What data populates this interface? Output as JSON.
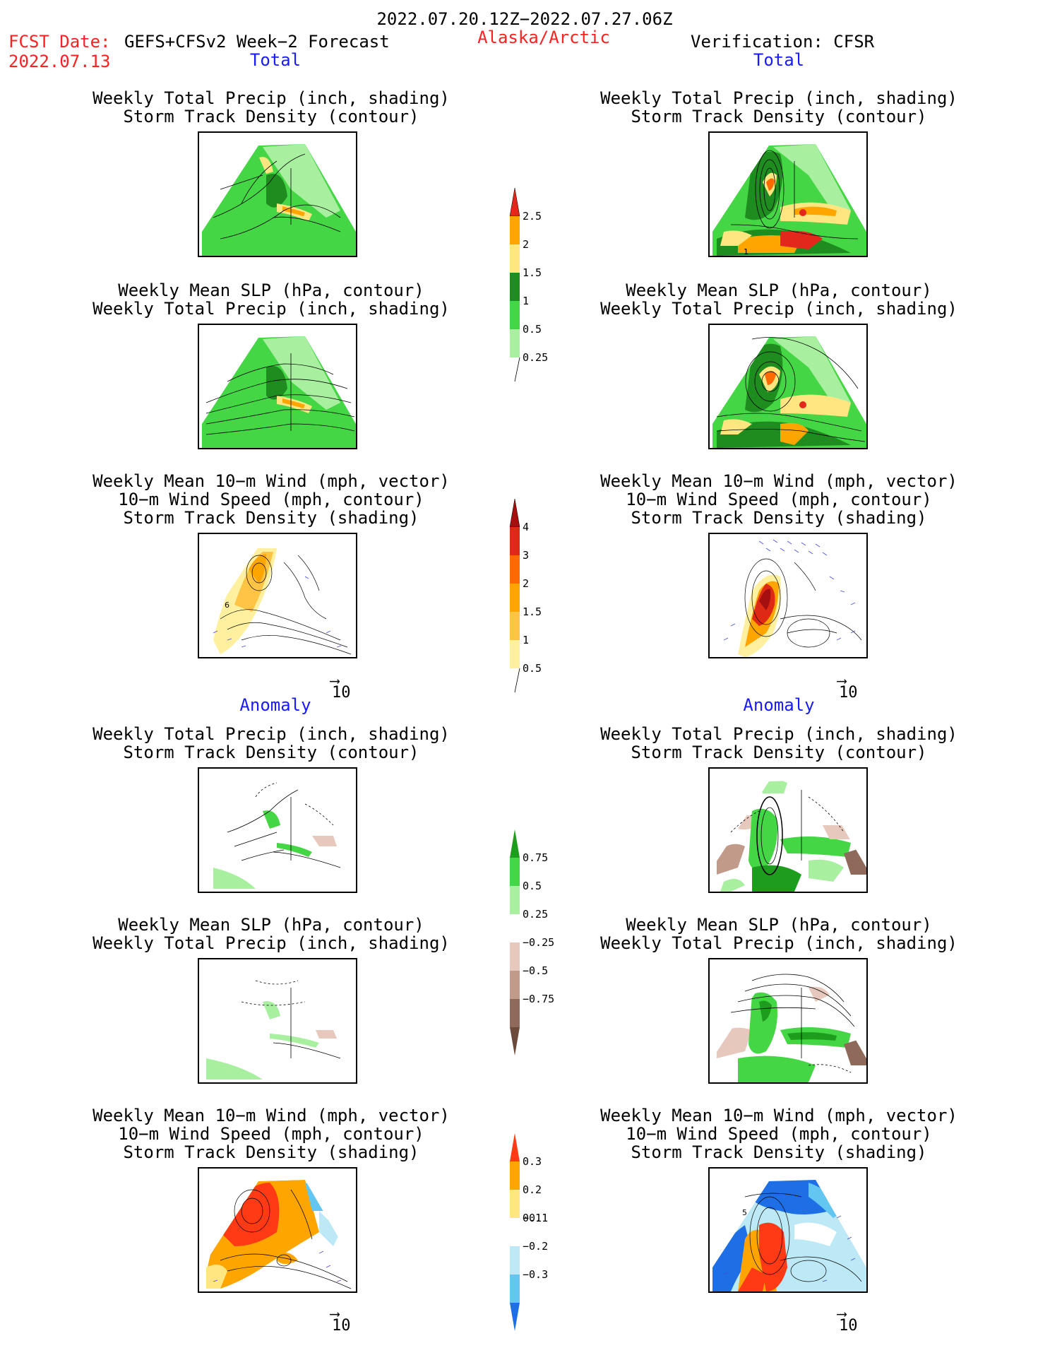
{
  "header": {
    "date_range": "2022.07.20.12Z−2022.07.27.06Z",
    "fcst_label": "FCST Date:",
    "fcst_model": "GEFS+CFSv2 Week−2 Forecast",
    "fcst_date": "2022.07.13",
    "region": "Alaska/Arctic",
    "verification": "Verification: CFSR"
  },
  "sections": {
    "total": "Total",
    "anomaly": "Anomaly"
  },
  "panel_titles": {
    "precip_storm": [
      "Weekly Total Precip (inch, shading)",
      "Storm Track Density (contour)"
    ],
    "slp_precip": [
      "Weekly Mean SLP (hPa, contour)",
      "Weekly Total Precip (inch, shading)"
    ],
    "wind_storm": [
      "Weekly Mean 10−m Wind (mph, vector)",
      "10−m Wind Speed (mph, contour)",
      "Storm Track Density (shading)"
    ]
  },
  "vector_reference": "10",
  "contour_labels": {
    "verif_total_precip": "1",
    "fcst_total_wind": "6",
    "verif_anom_wind": "5"
  },
  "colorbars": {
    "total_precip": {
      "labels": [
        "2.5",
        "2",
        "1.5",
        "1",
        "0.5",
        "0.25"
      ],
      "colors": [
        "#e3271c",
        "#ffa500",
        "#ffe680",
        "#1e8c1e",
        "#45d645",
        "#a8f0a0"
      ]
    },
    "total_storm": {
      "labels": [
        "4",
        "3",
        "2",
        "1.5",
        "1",
        "0.5"
      ],
      "colors": [
        "#a50f0f",
        "#de2a14",
        "#ff6a00",
        "#ffa500",
        "#ffc445",
        "#fff0a0"
      ]
    },
    "anom_precip": {
      "labels": [
        "0.75",
        "0.5",
        "0.25",
        "−0.25",
        "−0.5",
        "−0.75"
      ],
      "colors": [
        "#1e9c1e",
        "#45d645",
        "#a8f0a0",
        "#ffffff",
        "#e6c8bc",
        "#c29a8a",
        "#8f6a5a",
        "#6b4a3c"
      ]
    },
    "anom_storm": {
      "labels": [
        "0.3",
        "0.2",
        "0.1",
        "−0.1",
        "−0.2",
        "−0.3"
      ],
      "colors": [
        "#ff3a14",
        "#ffa500",
        "#ffe680",
        "#ffffff",
        "#bde9f7",
        "#63c6f0",
        "#1e6ee6"
      ]
    }
  }
}
